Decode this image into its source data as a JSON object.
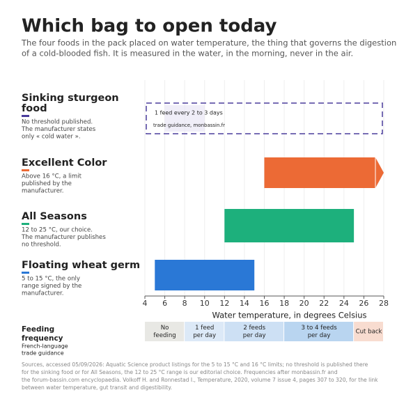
{
  "title": "Which bag to open today",
  "subtitle": [
    "The four foods in the pack placed on water temperature, the thing that governs the digestion",
    "of a cold-blooded fish. It is measured in the water, in the morning, never in the air."
  ],
  "chart_data": {
    "type": "range_bar",
    "categories": [
      [
        "Sinking sturgeon",
        "food"
      ],
      [
        "Excellent Color"
      ],
      [
        "All Seasons"
      ],
      [
        "Floating wheat germ"
      ]
    ],
    "notes": [
      [
        "No threshold published.",
        "The manufacturer states",
        "only « cold water »."
      ],
      [
        "Above 16 °C, a limit",
        "published by the",
        "manufacturer."
      ],
      [
        "12 to 25 °C, our choice.",
        "The manufacturer publishes",
        "no threshold."
      ],
      [
        "5 to 15 °C, the only",
        "range signed by the",
        "manufacturer."
      ]
    ],
    "colors": [
      "#4a3c9c",
      "#ec6a35",
      "#1db07c",
      "#2a78d6"
    ],
    "low": [
      null,
      16,
      12,
      5
    ],
    "high": [
      null,
      28,
      25,
      15
    ],
    "open_ended": [
      false,
      true,
      false,
      false
    ],
    "no_threshold_label": "1 feed every 2 to 3 days",
    "no_threshold_source": "trade guidance, monbassin.fr",
    "no_threshold_highlight": [
      6,
      10
    ],
    "xlim": [
      4,
      28
    ],
    "xticks": [
      4,
      6,
      8,
      10,
      12,
      14,
      16,
      18,
      20,
      22,
      24,
      26,
      28
    ],
    "xlabel": "Water temperature, in degrees Celsius",
    "grid": true,
    "bands": {
      "title": [
        "Feeding",
        "frequency"
      ],
      "subtitle": [
        "French-language",
        "trade guidance"
      ],
      "items": [
        {
          "label": [
            "No",
            "feeding"
          ],
          "from": 4,
          "to": 8,
          "color": "#e8e8e4"
        },
        {
          "label": [
            "1 feed",
            "per day"
          ],
          "from": 8,
          "to": 12,
          "color": "#dce9f7"
        },
        {
          "label": [
            "2 feeds",
            "per day"
          ],
          "from": 12,
          "to": 18,
          "color": "#cde0f4"
        },
        {
          "label": [
            "3 to 4 feeds",
            "per day"
          ],
          "from": 18,
          "to": 25,
          "color": "#b9d5f0"
        },
        {
          "label": [
            "Cut back"
          ],
          "from": 25,
          "to": 28,
          "color": "#f8dcd0"
        }
      ]
    }
  },
  "footnote": [
    "Sources, accessed 05/09/2026: Aquatic Science product listings for the 5 to 15 °C and 16 °C limits; no threshold is published there",
    "for the sinking food or for All Seasons, the 12 to 25 °C range is our editorial choice. Frequencies after monbassin.fr and",
    "the forum-bassin.com encyclopaedia. Volkoff H. and Ronnestad I., Temperature, 2020, volume 7 issue 4, pages 307 to 320, for the link",
    "between water temperature, gut transit and digestibility."
  ]
}
